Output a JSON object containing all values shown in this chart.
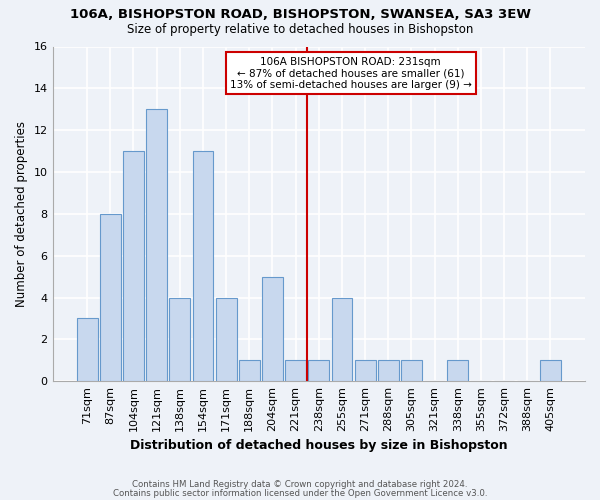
{
  "title": "106A, BISHOPSTON ROAD, BISHOPSTON, SWANSEA, SA3 3EW",
  "subtitle": "Size of property relative to detached houses in Bishopston",
  "xlabel": "Distribution of detached houses by size in Bishopston",
  "ylabel": "Number of detached properties",
  "bin_labels": [
    "71sqm",
    "87sqm",
    "104sqm",
    "121sqm",
    "138sqm",
    "154sqm",
    "171sqm",
    "188sqm",
    "204sqm",
    "221sqm",
    "238sqm",
    "255sqm",
    "271sqm",
    "288sqm",
    "305sqm",
    "321sqm",
    "338sqm",
    "355sqm",
    "372sqm",
    "388sqm",
    "405sqm"
  ],
  "bar_heights": [
    3,
    8,
    11,
    13,
    4,
    11,
    4,
    1,
    5,
    1,
    1,
    4,
    1,
    1,
    1,
    0,
    1,
    0,
    0,
    0,
    1
  ],
  "bar_color": "#c8d8ee",
  "bar_edgecolor": "#6699cc",
  "highlight_line_color": "#cc0000",
  "ylim": [
    0,
    16
  ],
  "yticks": [
    0,
    2,
    4,
    6,
    8,
    10,
    12,
    14,
    16
  ],
  "annotation_title": "106A BISHOPSTON ROAD: 231sqm",
  "annotation_line1": "← 87% of detached houses are smaller (61)",
  "annotation_line2": "13% of semi-detached houses are larger (9) →",
  "annotation_box_color": "#ffffff",
  "annotation_border_color": "#cc0000",
  "footer_line1": "Contains HM Land Registry data © Crown copyright and database right 2024.",
  "footer_line2": "Contains public sector information licensed under the Open Government Licence v3.0.",
  "background_color": "#eef2f8",
  "grid_color": "#ffffff",
  "highlight_bin_index": 10
}
